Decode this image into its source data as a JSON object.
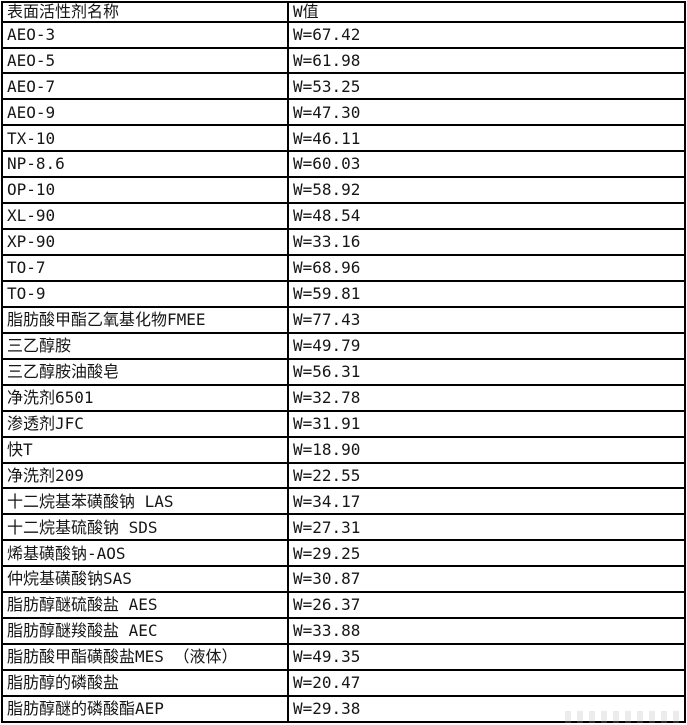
{
  "table": {
    "headers": [
      "表面活性剂名称",
      "W值"
    ],
    "rows": [
      {
        "name": "AEO-3",
        "value": "W=67.42"
      },
      {
        "name": "AEO-5",
        "value": "W=61.98"
      },
      {
        "name": "AEO-7",
        "value": "W=53.25"
      },
      {
        "name": "AEO-9",
        "value": "W=47.30"
      },
      {
        "name": "TX-10",
        "value": "W=46.11"
      },
      {
        "name": "NP-8.6",
        "value": "W=60.03"
      },
      {
        "name": "OP-10",
        "value": "W=58.92"
      },
      {
        "name": "XL-90",
        "value": "W=48.54"
      },
      {
        "name": "XP-90",
        "value": "W=33.16"
      },
      {
        "name": "TO-7",
        "value": "W=68.96"
      },
      {
        "name": "TO-9",
        "value": "W=59.81"
      },
      {
        "name": "脂肪酸甲酯乙氧基化物FMEE",
        "value": "W=77.43"
      },
      {
        "name": "三乙醇胺",
        "value": "W=49.79"
      },
      {
        "name": "三乙醇胺油酸皂",
        "value": "W=56.31"
      },
      {
        "name": "净洗剂6501",
        "value": "W=32.78"
      },
      {
        "name": "渗透剂JFC",
        "value": "W=31.91"
      },
      {
        "name": "快T",
        "value": "W=18.90"
      },
      {
        "name": "净洗剂209",
        "value": "W=22.55"
      },
      {
        "name": "十二烷基苯磺酸钠 LAS",
        "value": "W=34.17"
      },
      {
        "name": "十二烷基硫酸钠 SDS",
        "value": "W=27.31"
      },
      {
        "name": "烯基磺酸钠-AOS",
        "value": "W=29.25"
      },
      {
        "name": "仲烷基磺酸钠SAS",
        "value": "W=30.87"
      },
      {
        "name": "脂肪醇醚硫酸盐 AES",
        "value": "W=26.37"
      },
      {
        "name": "脂肪醇醚羧酸盐 AEC",
        "value": "W=33.88"
      },
      {
        "name": "脂肪酸甲酯磺酸盐MES （液体）",
        "value": "W=49.35"
      },
      {
        "name": "脂肪醇的磷酸盐",
        "value": "W=20.47"
      },
      {
        "name": "脂肪醇醚的磷酸酯AEP",
        "value": "W=29.38"
      }
    ]
  },
  "colors": {
    "border": "#000000",
    "text": "#161616",
    "background": "#ffffff"
  }
}
